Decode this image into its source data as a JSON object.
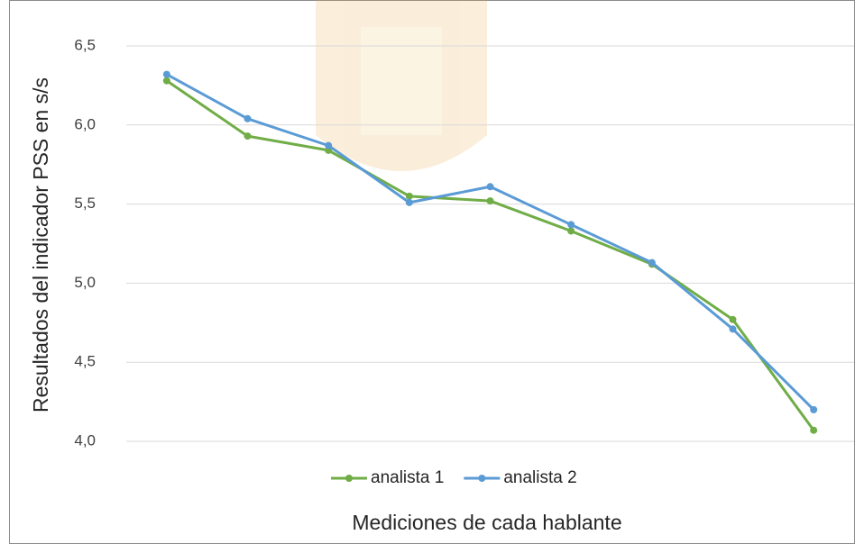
{
  "chart_data": {
    "type": "line",
    "x_label": "Mediciones de cada hablante",
    "y_label": "Resultados del indicador PSS en s/s",
    "categories": [
      null,
      null,
      null,
      null,
      null,
      null,
      null,
      null,
      null
    ],
    "series": [
      {
        "name": "analista 1",
        "color": "#70ad47",
        "values": [
          6.28,
          5.93,
          5.84,
          5.55,
          5.52,
          5.33,
          5.12,
          4.77,
          4.07
        ]
      },
      {
        "name": "analista 2",
        "color": "#5b9bd5",
        "values": [
          6.32,
          6.04,
          5.87,
          5.51,
          5.61,
          5.37,
          5.13,
          4.71,
          4.2
        ]
      }
    ],
    "ylim": [
      4,
      6.5
    ],
    "yticks": [
      {
        "value": 4,
        "label": "4,0"
      },
      {
        "value": 4.5,
        "label": "4,5"
      },
      {
        "value": 5,
        "label": "5,0"
      },
      {
        "value": 5.5,
        "label": "5,5"
      },
      {
        "value": 6,
        "label": "6,0"
      },
      {
        "value": 6.5,
        "label": "6,5"
      }
    ],
    "grid": true,
    "legend": "bottom"
  }
}
